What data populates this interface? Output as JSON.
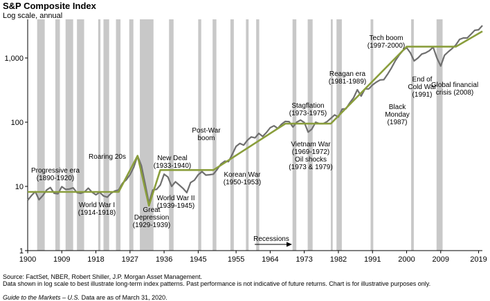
{
  "header": {
    "title": "S&P Composite Index",
    "subtitle": "Log scale, annual"
  },
  "chart_data": {
    "type": "line",
    "title": "S&P Composite Index",
    "subtitle": "Log scale, annual",
    "y_scale": "log",
    "ylim": [
      1,
      4000
    ],
    "xlim": [
      1900,
      2020
    ],
    "y_ticks": [
      1,
      10,
      100,
      1000
    ],
    "y_tick_labels": [
      "1",
      "10",
      "100",
      "1,000"
    ],
    "x_ticks": [
      1900,
      1909,
      1918,
      1927,
      1936,
      1945,
      1955,
      1964,
      1973,
      1982,
      1991,
      2000,
      2009,
      2019
    ],
    "recession_label": "Recessions",
    "recessions": [
      [
        1902.5,
        1904.5
      ],
      [
        1907.3,
        1908.5
      ],
      [
        1910,
        1912
      ],
      [
        1913,
        1914.9
      ],
      [
        1918.6,
        1919.2
      ],
      [
        1920,
        1921.5
      ],
      [
        1923.3,
        1924.5
      ],
      [
        1926.8,
        1927.9
      ],
      [
        1929.6,
        1933.2
      ],
      [
        1937.3,
        1938.5
      ],
      [
        1945,
        1945.8
      ],
      [
        1948.8,
        1949.8
      ],
      [
        1953.5,
        1954.4
      ],
      [
        1957.6,
        1958.3
      ],
      [
        1960.3,
        1961.1
      ],
      [
        1969.9,
        1970.9
      ],
      [
        1973.9,
        1975.2
      ],
      [
        1980,
        1980.5
      ],
      [
        1981.5,
        1982.9
      ],
      [
        1990.5,
        1991.2
      ],
      [
        2001.2,
        2001.9
      ],
      [
        2007.9,
        2009.5
      ]
    ],
    "series": [
      {
        "name": "S&P Composite Index",
        "x": [
          1900,
          1901,
          1902,
          1903,
          1904,
          1905,
          1906,
          1907,
          1908,
          1909,
          1910,
          1911,
          1912,
          1913,
          1914,
          1915,
          1916,
          1917,
          1918,
          1919,
          1920,
          1921,
          1922,
          1923,
          1924,
          1925,
          1926,
          1927,
          1928,
          1929,
          1930,
          1931,
          1932,
          1933,
          1934,
          1935,
          1936,
          1937,
          1938,
          1939,
          1940,
          1941,
          1942,
          1943,
          1944,
          1945,
          1946,
          1947,
          1948,
          1949,
          1950,
          1951,
          1952,
          1953,
          1954,
          1955,
          1956,
          1957,
          1958,
          1959,
          1960,
          1961,
          1962,
          1963,
          1964,
          1965,
          1966,
          1967,
          1968,
          1969,
          1970,
          1971,
          1972,
          1973,
          1974,
          1975,
          1976,
          1977,
          1978,
          1979,
          1980,
          1981,
          1982,
          1983,
          1984,
          1985,
          1986,
          1987,
          1988,
          1989,
          1990,
          1991,
          1992,
          1993,
          1994,
          1995,
          1996,
          1997,
          1998,
          1999,
          2000,
          2001,
          2002,
          2003,
          2004,
          2005,
          2006,
          2007,
          2008,
          2009,
          2010,
          2011,
          2012,
          2013,
          2014,
          2015,
          2016,
          2017,
          2018,
          2019,
          2020
        ],
        "values": [
          6.1,
          7.2,
          8.3,
          6.2,
          7.2,
          8.8,
          9.6,
          7.8,
          7.7,
          9.9,
          9.0,
          9.1,
          9.5,
          8.0,
          7.8,
          8.2,
          9.4,
          8.1,
          7.4,
          8.1,
          7.1,
          6.8,
          7.8,
          8.5,
          8.8,
          11.2,
          12.6,
          15.2,
          19.9,
          30.0,
          21.0,
          11.0,
          5.5,
          8.8,
          9.0,
          10.5,
          15.5,
          14.0,
          10.0,
          11.8,
          10.5,
          9.3,
          8.0,
          11.5,
          12.5,
          15.2,
          17.0,
          15.0,
          15.2,
          15.5,
          18.4,
          22.3,
          24.7,
          24.3,
          31.7,
          42.0,
          46.8,
          44.0,
          52.5,
          59.0,
          57.0,
          67.0,
          60.0,
          69.0,
          82.0,
          88.0,
          80.0,
          93.0,
          103.0,
          102.0,
          84.0,
          100.0,
          108.0,
          99.0,
          70.0,
          78.0,
          100.0,
          95.0,
          95.0,
          102.0,
          115.0,
          130.0,
          120.0,
          160.0,
          162.0,
          200.0,
          240.0,
          320.0,
          255.0,
          330.0,
          330.0,
          380.0,
          420.0,
          455.0,
          460.0,
          560.0,
          700.0,
          900.0,
          1100.0,
          1300.0,
          1450.0,
          1200.0,
          900.0,
          1000.0,
          1150.0,
          1200.0,
          1300.0,
          1480.0,
          1000.0,
          750.0,
          1100.0,
          1250.0,
          1400.0,
          1600.0,
          1950.0,
          2050.0,
          2050.0,
          2350.0,
          2700.0,
          2750.0,
          3200.0
        ]
      },
      {
        "name": "Trend",
        "x": [
          1900,
          1924,
          1929,
          1932,
          1935,
          1949,
          1968,
          1980,
          2000,
          2013,
          2020
        ],
        "values": [
          8.2,
          8.2,
          30,
          5,
          18,
          18,
          95,
          95,
          1500,
          1500,
          2600
        ]
      }
    ],
    "annotations": [
      {
        "lines": [
          "Progressive era",
          "(1890-1920)"
        ]
      },
      {
        "lines": [
          "Roaring 20s"
        ]
      },
      {
        "lines": [
          "World War I",
          "(1914-1918)"
        ]
      },
      {
        "lines": [
          "Great",
          "Depression",
          "(1929-1939)"
        ]
      },
      {
        "lines": [
          "New Deal",
          "(1933-1940)"
        ]
      },
      {
        "lines": [
          "World War II",
          "(1939-1945)"
        ]
      },
      {
        "lines": [
          "Post-War",
          "boom"
        ]
      },
      {
        "lines": [
          "Korean War",
          "(1950-1953)"
        ]
      },
      {
        "lines": [
          "Stagflation",
          "(1973-1975)"
        ]
      },
      {
        "lines": [
          "Vietnam War",
          "(1969-1972)",
          "Oil shocks",
          "(1973 & 1979)"
        ]
      },
      {
        "lines": [
          "Reagan era",
          "(1981-1989)"
        ]
      },
      {
        "lines": [
          "Black",
          "Monday",
          "(1987)"
        ]
      },
      {
        "lines": [
          "End of",
          "Cold War",
          "(1991)"
        ]
      },
      {
        "lines": [
          "Tech boom",
          "(1997-2000)"
        ]
      },
      {
        "lines": [
          "Global financial",
          "crisis (2008)"
        ]
      }
    ],
    "colors": {
      "line": "#6f6f6f",
      "trend": "#8a9e3c",
      "recession": "#c8c8c8",
      "axis": "#000000"
    }
  },
  "footnotes": {
    "source": "Source: FactSet, NBER, Robert Shiller, J.P. Morgan Asset Management.",
    "disclaimer": "Data shown in log scale to best illustrate long-term index patterns. Past performance is not indicative of future returns. Chart is for illustrative purposes only.",
    "guide_title": "Guide to the Markets – U.S.",
    "guide_date": " Data are as of March 31, 2020."
  }
}
